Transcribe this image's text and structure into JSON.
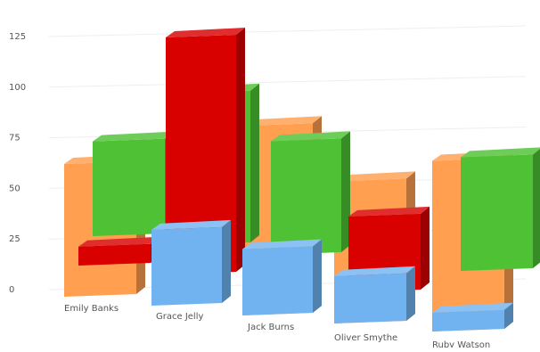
{
  "chart_data": {
    "type": "bar",
    "style": "3d-stacked-depth",
    "title": "",
    "xlabel": "",
    "ylabel": "",
    "ylim": [
      0,
      125
    ],
    "yticks": [
      "0",
      "25",
      "50",
      "75",
      "100",
      "125"
    ],
    "grid": true,
    "categories": [
      "Emily Banks",
      "Grace Jelly",
      "Jack Burns",
      "Oliver Smythe",
      "Ruby Watson"
    ],
    "series": [
      {
        "color": "#d90000",
        "values": [
          10,
          125,
          0,
          40,
          0
        ]
      },
      {
        "color": "#4ec234",
        "values": [
          50,
          80,
          60,
          0,
          60
        ]
      },
      {
        "color": "#ff9f4f",
        "values": [
          70,
          0,
          100,
          75,
          90
        ]
      },
      {
        "color": "#71b3f0",
        "values": [
          0,
          40,
          35,
          25,
          10
        ]
      }
    ]
  }
}
